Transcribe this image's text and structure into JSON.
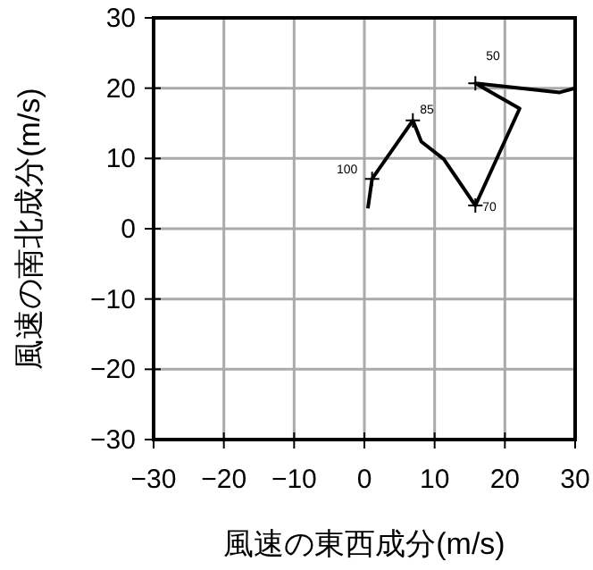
{
  "chart_data": {
    "type": "line",
    "xlabel": "風速の東西成分(m/s)",
    "ylabel": "風速の南北成分(m/s)",
    "xlim": [
      -30,
      30
    ],
    "ylim": [
      -30,
      30
    ],
    "xticks": [
      -30,
      -20,
      -10,
      0,
      10,
      20,
      30
    ],
    "yticks": [
      -30,
      -20,
      -10,
      0,
      10,
      20,
      30
    ],
    "grid": true,
    "series": [
      {
        "color": "#000000",
        "x": [
          0.5,
          1.1,
          6.9,
          8.1,
          11.3,
          15.8,
          22.1,
          15.8,
          27.8,
          30
        ],
        "values": [
          2.9,
          7.1,
          15.4,
          12.4,
          9.9,
          3.3,
          17.1,
          20.7,
          19.4,
          20
        ]
      }
    ],
    "annotations": [
      {
        "text": "100",
        "x": 1.1,
        "y": 7.1
      },
      {
        "text": "85",
        "x": 6.9,
        "y": 15.4
      },
      {
        "text": "70",
        "x": 15.8,
        "y": 3.3
      },
      {
        "text": "50",
        "x": 15.8,
        "y": 20.7
      }
    ]
  }
}
